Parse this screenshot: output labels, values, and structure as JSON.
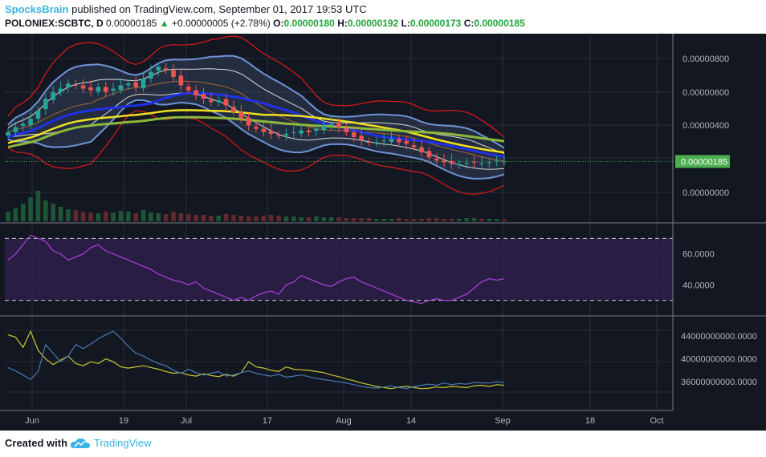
{
  "header": {
    "author": "SpocksBrain",
    "published": "published on TradingView.com, September 01, 2017 19:53 UTC",
    "symbol": "POLONIEX:SCBTC, D",
    "last": "0.00000185",
    "change": "+0.00000005 (+2.78%)",
    "o_label": "O:",
    "o_value": "0.00000180",
    "h_label": "H:",
    "h_value": "0.00000192",
    "l_label": "L:",
    "l_value": "0.00000173",
    "c_label": "C:",
    "c_value": "0.00000185"
  },
  "footer": {
    "created": "Created with",
    "brand": "TradingView"
  },
  "colors": {
    "background": "#131722",
    "grid": "#2a2e39",
    "up": "#26a69a",
    "down": "#ef5350",
    "bb_outer": "#e01818",
    "bb_mid": "#6f93d6",
    "bb_inner": "#d8d8d8",
    "ma_blue": "#2030e8",
    "ma_yellow": "#f0e020",
    "ma_green": "#8db83a",
    "rsi": "#a13ed3",
    "rsi_band": "#2e1e48",
    "osc_yellow": "#c8c830",
    "osc_blue": "#4a78b0",
    "price_tag": "#4caf50"
  },
  "chart_data": [
    {
      "type": "candlestick",
      "pane": "price",
      "price_scale_ticks": [
        "0.00000800",
        "0.00000600",
        "0.00000400",
        "0.00000000"
      ],
      "last_price_label": "0.00000185",
      "close": [
        3.6,
        3.9,
        4.1,
        4.4,
        4.9,
        5.6,
        6.0,
        6.2,
        6.5,
        6.4,
        6.2,
        6.1,
        6.3,
        6.0,
        6.2,
        6.4,
        6.5,
        6.3,
        6.8,
        7.2,
        7.5,
        7.3,
        6.9,
        6.4,
        6.1,
        5.8,
        5.6,
        5.4,
        5.5,
        5.2,
        4.8,
        4.4,
        4.0,
        3.8,
        3.6,
        3.5,
        3.4,
        3.5,
        3.6,
        3.7,
        3.6,
        3.8,
        4.0,
        4.1,
        3.9,
        3.6,
        3.3,
        3.1,
        3.0,
        3.0,
        3.1,
        3.2,
        3.0,
        2.9,
        2.7,
        2.4,
        2.1,
        1.9,
        1.8,
        1.7,
        1.7,
        1.75,
        1.8,
        1.75,
        1.8,
        1.9,
        1.85
      ],
      "volume": [
        12,
        16,
        22,
        30,
        38,
        26,
        22,
        18,
        15,
        14,
        12,
        11,
        10,
        12,
        11,
        13,
        12,
        10,
        14,
        11,
        10,
        9,
        12,
        10,
        9,
        8,
        8,
        7,
        7,
        9,
        8,
        7,
        6,
        6,
        7,
        8,
        7,
        6,
        6,
        5,
        5,
        6,
        5,
        5,
        5,
        4,
        4,
        4,
        4,
        3,
        3,
        3,
        4,
        3,
        3,
        3,
        4,
        4,
        3,
        3,
        3,
        4,
        4,
        3,
        3,
        3,
        2
      ]
    },
    {
      "type": "line",
      "pane": "rsi",
      "ylim": [
        20,
        80
      ],
      "ticks": [
        "60.0000",
        "40.0000"
      ],
      "bands": [
        70,
        30
      ],
      "values": [
        56,
        60,
        66,
        72,
        70,
        68,
        62,
        60,
        56,
        58,
        60,
        64,
        66,
        62,
        60,
        58,
        56,
        54,
        52,
        50,
        47,
        45,
        43,
        42,
        40,
        42,
        38,
        36,
        34,
        32,
        30,
        32,
        30,
        33,
        35,
        36,
        34,
        40,
        42,
        46,
        44,
        42,
        40,
        39,
        42,
        44,
        45,
        42,
        40,
        38,
        36,
        34,
        32,
        30,
        29,
        28,
        30,
        31,
        30,
        30,
        32,
        34,
        38,
        42,
        44,
        43,
        44
      ]
    },
    {
      "type": "line",
      "pane": "oscillator",
      "ylim": [
        31000000000,
        47500000000
      ],
      "ticks": [
        "44000000000.0000",
        "40000000000.0000",
        "36000000000.0000"
      ],
      "series": [
        {
          "values": [
            44.2,
            43.8,
            42.0,
            44.8,
            41.5,
            40.0,
            39.0,
            39.8,
            40.5,
            39.2,
            38.8,
            39.5,
            39.2,
            40.0,
            39.5,
            38.6,
            38.4,
            38.6,
            38.8,
            38.5,
            38.2,
            37.8,
            37.5,
            37.6,
            37.2,
            37.0,
            37.4,
            37.1,
            36.9,
            37.3,
            37.0,
            37.6,
            39.5,
            38.6,
            38.4,
            38.0,
            37.8,
            38.6,
            38.2,
            38.1,
            38.0,
            37.8,
            37.6,
            37.2,
            36.9,
            36.5,
            36.2,
            35.8,
            35.5,
            35.2,
            35.0,
            34.8,
            35.1,
            35.2,
            35.0,
            34.8,
            34.9,
            35.1,
            35.0,
            35.2,
            35.1,
            35.0,
            35.3,
            35.4,
            35.2,
            35.5,
            35.4
          ]
        },
        {
          "values": [
            38.5,
            37.9,
            37.2,
            36.4,
            37.8,
            42.5,
            41.0,
            39.5,
            40.5,
            42.5,
            41.8,
            42.6,
            43.5,
            44.2,
            44.8,
            43.6,
            42.2,
            41.0,
            40.5,
            39.8,
            39.2,
            38.8,
            38.0,
            37.5,
            38.2,
            37.6,
            37.2,
            37.5,
            37.8,
            37.0,
            37.2,
            37.6,
            37.9,
            37.5,
            37.2,
            37.0,
            37.3,
            36.8,
            37.0,
            37.2,
            36.9,
            36.6,
            36.4,
            36.2,
            36.0,
            35.8,
            35.5,
            35.2,
            35.0,
            34.9,
            35.1,
            35.3,
            35.0,
            34.8,
            35.2,
            35.4,
            35.6,
            35.4,
            35.8,
            35.5,
            35.7,
            35.6,
            35.9,
            35.8,
            35.8,
            36.0,
            35.9
          ]
        }
      ]
    }
  ],
  "x_axis": {
    "labels": [
      "Jun",
      "19",
      "Jul",
      "17",
      "Aug",
      "14",
      "Sep",
      "18",
      "Oct"
    ]
  }
}
